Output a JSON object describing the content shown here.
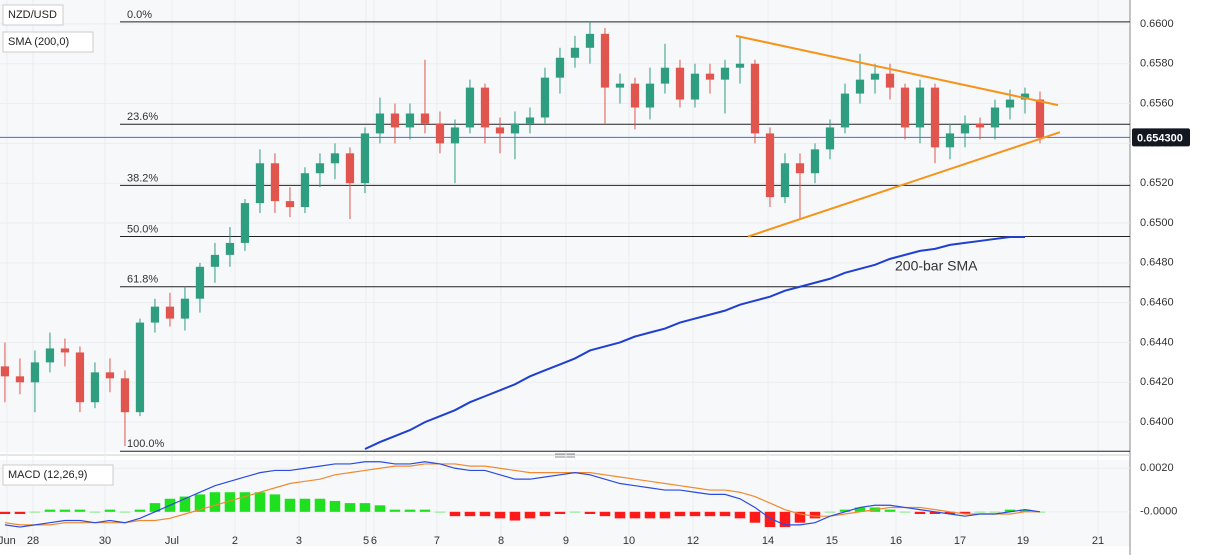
{
  "chart_data": [
    {
      "type": "candlestick",
      "symbol": "NZD/USD",
      "indicator": "SMA (200,0)",
      "up_color": "#2e9d80",
      "down_color": "#e0564f",
      "open": [
        0.6428,
        0.6423,
        0.642,
        0.643,
        0.6437,
        0.6435,
        0.641,
        0.6425,
        0.6422,
        0.6405,
        0.645,
        0.6458,
        0.6452,
        0.6462,
        0.6478,
        0.6484,
        0.649,
        0.651,
        0.653,
        0.6511,
        0.6508,
        0.6525,
        0.653,
        0.6535,
        0.652,
        0.6545,
        0.6555,
        0.6548,
        0.6555,
        0.655,
        0.654,
        0.6548,
        0.6568,
        0.6548,
        0.6545,
        0.655,
        0.6553,
        0.6573,
        0.6583,
        0.6588,
        0.6595,
        0.6568,
        0.657,
        0.6558,
        0.657,
        0.6578,
        0.6562,
        0.6575,
        0.6572,
        0.6578,
        0.658,
        0.6545,
        0.6513,
        0.653,
        0.6525,
        0.6537,
        0.6548,
        0.6565,
        0.6572,
        0.6575,
        0.6568,
        0.6548,
        0.6568,
        0.6538,
        0.6545,
        0.655,
        0.6548,
        0.6558,
        0.6562,
        0.6562
      ],
      "high": [
        0.644,
        0.6432,
        0.6436,
        0.6445,
        0.6442,
        0.6438,
        0.643,
        0.6432,
        0.6426,
        0.6452,
        0.6462,
        0.6465,
        0.6468,
        0.648,
        0.649,
        0.6498,
        0.6512,
        0.6537,
        0.6535,
        0.6518,
        0.6528,
        0.6535,
        0.654,
        0.6538,
        0.6548,
        0.6563,
        0.656,
        0.656,
        0.6582,
        0.6556,
        0.6552,
        0.6572,
        0.657,
        0.6553,
        0.6556,
        0.6558,
        0.6578,
        0.6588,
        0.6594,
        0.6601,
        0.6598,
        0.6575,
        0.6573,
        0.6578,
        0.659,
        0.6582,
        0.658,
        0.658,
        0.6582,
        0.6594,
        0.6582,
        0.6548,
        0.6535,
        0.6535,
        0.654,
        0.6552,
        0.657,
        0.6585,
        0.658,
        0.658,
        0.657,
        0.6572,
        0.657,
        0.655,
        0.6554,
        0.6553,
        0.6562,
        0.6567,
        0.6568,
        0.6566
      ],
      "low": [
        0.641,
        0.6414,
        0.6405,
        0.6425,
        0.6428,
        0.6405,
        0.6407,
        0.6415,
        0.6388,
        0.6403,
        0.6445,
        0.6448,
        0.6446,
        0.6455,
        0.647,
        0.6478,
        0.6486,
        0.6505,
        0.6505,
        0.6503,
        0.6505,
        0.6518,
        0.6522,
        0.6502,
        0.6515,
        0.654,
        0.654,
        0.6542,
        0.6545,
        0.6535,
        0.652,
        0.6545,
        0.654,
        0.6535,
        0.6532,
        0.6545,
        0.655,
        0.6565,
        0.6578,
        0.658,
        0.655,
        0.656,
        0.6547,
        0.6552,
        0.6565,
        0.6558,
        0.6558,
        0.6565,
        0.6555,
        0.657,
        0.654,
        0.6508,
        0.651,
        0.6502,
        0.652,
        0.6532,
        0.6545,
        0.656,
        0.6565,
        0.6562,
        0.6542,
        0.654,
        0.653,
        0.6532,
        0.6538,
        0.6542,
        0.6542,
        0.6552,
        0.6555,
        0.654
      ],
      "close": [
        0.6423,
        0.642,
        0.643,
        0.6437,
        0.6435,
        0.641,
        0.6425,
        0.6422,
        0.6405,
        0.645,
        0.6458,
        0.6452,
        0.6462,
        0.6478,
        0.6484,
        0.649,
        0.651,
        0.653,
        0.6511,
        0.6508,
        0.6525,
        0.653,
        0.6535,
        0.652,
        0.6545,
        0.6555,
        0.6548,
        0.6555,
        0.655,
        0.654,
        0.6548,
        0.6568,
        0.6548,
        0.6545,
        0.655,
        0.6553,
        0.6573,
        0.6583,
        0.6588,
        0.6595,
        0.6568,
        0.657,
        0.6558,
        0.657,
        0.6578,
        0.6562,
        0.6575,
        0.6572,
        0.6578,
        0.658,
        0.6545,
        0.6513,
        0.653,
        0.6525,
        0.6537,
        0.6548,
        0.6565,
        0.6572,
        0.6575,
        0.6568,
        0.6548,
        0.6568,
        0.6538,
        0.6545,
        0.655,
        0.6548,
        0.6558,
        0.6562,
        0.6565,
        0.6543
      ],
      "sma": {
        "name": "200-bar SMA",
        "color": "#1f3fd1",
        "label_color": "#5c6bc0",
        "values": [
          null,
          null,
          null,
          null,
          null,
          null,
          null,
          null,
          null,
          null,
          null,
          null,
          null,
          null,
          null,
          null,
          null,
          null,
          null,
          null,
          null,
          null,
          null,
          null,
          0.63865,
          0.639,
          0.6393,
          0.6396,
          0.64,
          0.6403,
          0.6406,
          0.641,
          0.6413,
          0.6416,
          0.6419,
          0.6423,
          0.6426,
          0.6429,
          0.6432,
          0.6436,
          0.6438,
          0.644,
          0.6443,
          0.6445,
          0.6447,
          0.645,
          0.6452,
          0.6454,
          0.6456,
          0.6459,
          0.6461,
          0.6463,
          0.6466,
          0.6468,
          0.647,
          0.6472,
          0.6475,
          0.6477,
          0.6479,
          0.6482,
          0.6484,
          0.6486,
          0.6487,
          0.6489,
          0.649,
          0.6491,
          0.6492,
          0.6493,
          0.6493,
          null
        ]
      },
      "fib_levels": [
        {
          "label": "0.0%",
          "value": 0.6601
        },
        {
          "label": "23.6%",
          "value": 0.65496
        },
        {
          "label": "38.2%",
          "value": 0.65189
        },
        {
          "label": "50.0%",
          "value": 0.64932
        },
        {
          "label": "61.8%",
          "value": 0.6468
        },
        {
          "label": "100.0%",
          "value": 0.63854
        }
      ],
      "trendlines": [
        {
          "color": "#f7931a",
          "x": [
            48.73,
            70.2
          ],
          "values": [
            0.6594,
            0.65592
          ]
        },
        {
          "color": "#f7931a",
          "x": [
            49.53,
            70.33
          ],
          "values": [
            0.64932,
            0.65456
          ]
        }
      ],
      "last_price": {
        "value": 0.6543,
        "label": "0.654300"
      },
      "xlim": [
        -0.33,
        75
      ],
      "ylim": [
        0.6385,
        0.6612
      ],
      "yticks": [
        {
          "value": 0.64,
          "label": "0.6400"
        },
        {
          "value": 0.642,
          "label": "0.6420"
        },
        {
          "value": 0.644,
          "label": "0.6440"
        },
        {
          "value": 0.646,
          "label": "0.6460"
        },
        {
          "value": 0.648,
          "label": "0.6480"
        },
        {
          "value": 0.65,
          "label": "0.6500"
        },
        {
          "value": 0.652,
          "label": "0.6520"
        },
        {
          "value": 0.654,
          "label": "0.6540"
        },
        {
          "value": 0.656,
          "label": "0.6560"
        },
        {
          "value": 0.658,
          "label": "0.6580"
        },
        {
          "value": 0.66,
          "label": "0.6600"
        }
      ],
      "xticks": [
        {
          "value": 0.13,
          "label": "Jun"
        },
        {
          "value": 1.87,
          "label": "28"
        },
        {
          "value": 6.67,
          "label": "30"
        },
        {
          "value": 11.13,
          "label": "Jul"
        },
        {
          "value": 15.33,
          "label": "2"
        },
        {
          "value": 19.6,
          "label": "3"
        },
        {
          "value": 24.07,
          "label": "5"
        },
        {
          "value": 24.6,
          "label": "6"
        },
        {
          "value": 28.8,
          "label": "7"
        },
        {
          "value": 33.07,
          "label": "8"
        },
        {
          "value": 37.4,
          "label": "9"
        },
        {
          "value": 41.6,
          "label": "10"
        },
        {
          "value": 45.87,
          "label": "12"
        },
        {
          "value": 50.87,
          "label": "14"
        },
        {
          "value": 55.13,
          "label": "15"
        },
        {
          "value": 59.4,
          "label": "16"
        },
        {
          "value": 63.67,
          "label": "17"
        },
        {
          "value": 67.87,
          "label": "19"
        },
        {
          "value": 72.87,
          "label": "21"
        }
      ]
    },
    {
      "type": "macd",
      "title": "MACD (12,26,9)",
      "up_color": "#1fe01f",
      "down_color": "#ff1a1a",
      "histogram": [
        -0.0001,
        -0.0001,
        0,
        0.0001,
        0.0001,
        0.0001,
        0,
        0.0001,
        0,
        0.0001,
        0.0004,
        0.0006,
        0.0007,
        0.0008,
        0.0009,
        0.0009,
        0.0009,
        0.0009,
        0.0008,
        0.0006,
        0.0006,
        0.0006,
        0.0005,
        0.0004,
        0.0004,
        0.0003,
        0.0001,
        0.0001,
        0.0001,
        0,
        -0.0002,
        -0.0002,
        -0.0002,
        -0.0003,
        -0.0004,
        -0.0003,
        -0.0002,
        -0.0001,
        0,
        -0.0001,
        -0.0002,
        -0.0003,
        -0.0003,
        -0.0003,
        -0.0003,
        -0.0002,
        -0.0002,
        -0.0002,
        -0.0002,
        -0.0003,
        -0.0005,
        -0.0007,
        -0.0007,
        -0.0005,
        -0.0003,
        0,
        0.0001,
        0.0002,
        0.0002,
        0.0001,
        0,
        -0.0001,
        -0.0001,
        -0.0001,
        -0.0001,
        0,
        0,
        0.0001,
        0.0001,
        0
      ],
      "macd": {
        "color": "#2b4be0",
        "values": [
          -0.0006,
          -0.0007,
          -0.0006,
          -0.0005,
          -0.0004,
          -0.0004,
          -0.0005,
          -0.0004,
          -0.0005,
          -0.0003,
          0,
          0.0003,
          0.0006,
          0.0009,
          0.0012,
          0.0014,
          0.0016,
          0.0018,
          0.0019,
          0.0019,
          0.002,
          0.0021,
          0.0022,
          0.0022,
          0.0023,
          0.0023,
          0.0022,
          0.0022,
          0.0023,
          0.0022,
          0.002,
          0.0019,
          0.0019,
          0.0017,
          0.0015,
          0.0015,
          0.0016,
          0.0017,
          0.0018,
          0.0017,
          0.0015,
          0.0013,
          0.0012,
          0.0011,
          0.001,
          0.001,
          0.0009,
          0.0008,
          0.0008,
          0.0006,
          0.0002,
          -0.0003,
          -0.0006,
          -0.0006,
          -0.0005,
          -0.0002,
          0,
          0.0002,
          0.0003,
          0.0003,
          0.0002,
          0.0001,
          0,
          -0.0001,
          -0.0002,
          -0.0001,
          -0.0001,
          0,
          0.0001,
          0
        ]
      },
      "signal": {
        "color": "#f08a30",
        "values": [
          -0.0005,
          -0.0006,
          -0.0006,
          -0.0006,
          -0.0005,
          -0.0005,
          -0.0005,
          -0.0005,
          -0.0005,
          -0.0004,
          -0.0004,
          -0.0003,
          -0.0001,
          0.0001,
          0.0003,
          0.0005,
          0.0007,
          0.0009,
          0.0011,
          0.0013,
          0.0014,
          0.0015,
          0.0017,
          0.0018,
          0.0019,
          0.002,
          0.0021,
          0.0021,
          0.0022,
          0.0022,
          0.0022,
          0.0021,
          0.0021,
          0.002,
          0.0019,
          0.0018,
          0.0018,
          0.0018,
          0.0018,
          0.0018,
          0.0017,
          0.0016,
          0.0015,
          0.0014,
          0.0013,
          0.0012,
          0.0011,
          0.001,
          0.001,
          0.0009,
          0.0007,
          0.0004,
          0.0001,
          -0.0001,
          -0.0002,
          -0.0002,
          -0.0001,
          0,
          0.0001,
          0.0002,
          0.0002,
          0.0002,
          0.0001,
          0,
          -0.0001,
          -0.0001,
          -0.0001,
          -0.0001,
          0,
          0
        ]
      },
      "ylim": [
        -0.00157,
        0.00238
      ],
      "yticks": [
        {
          "value": 0.002,
          "label": "0.0020"
        },
        {
          "value": 0,
          "label": "-0.0000"
        }
      ]
    }
  ]
}
